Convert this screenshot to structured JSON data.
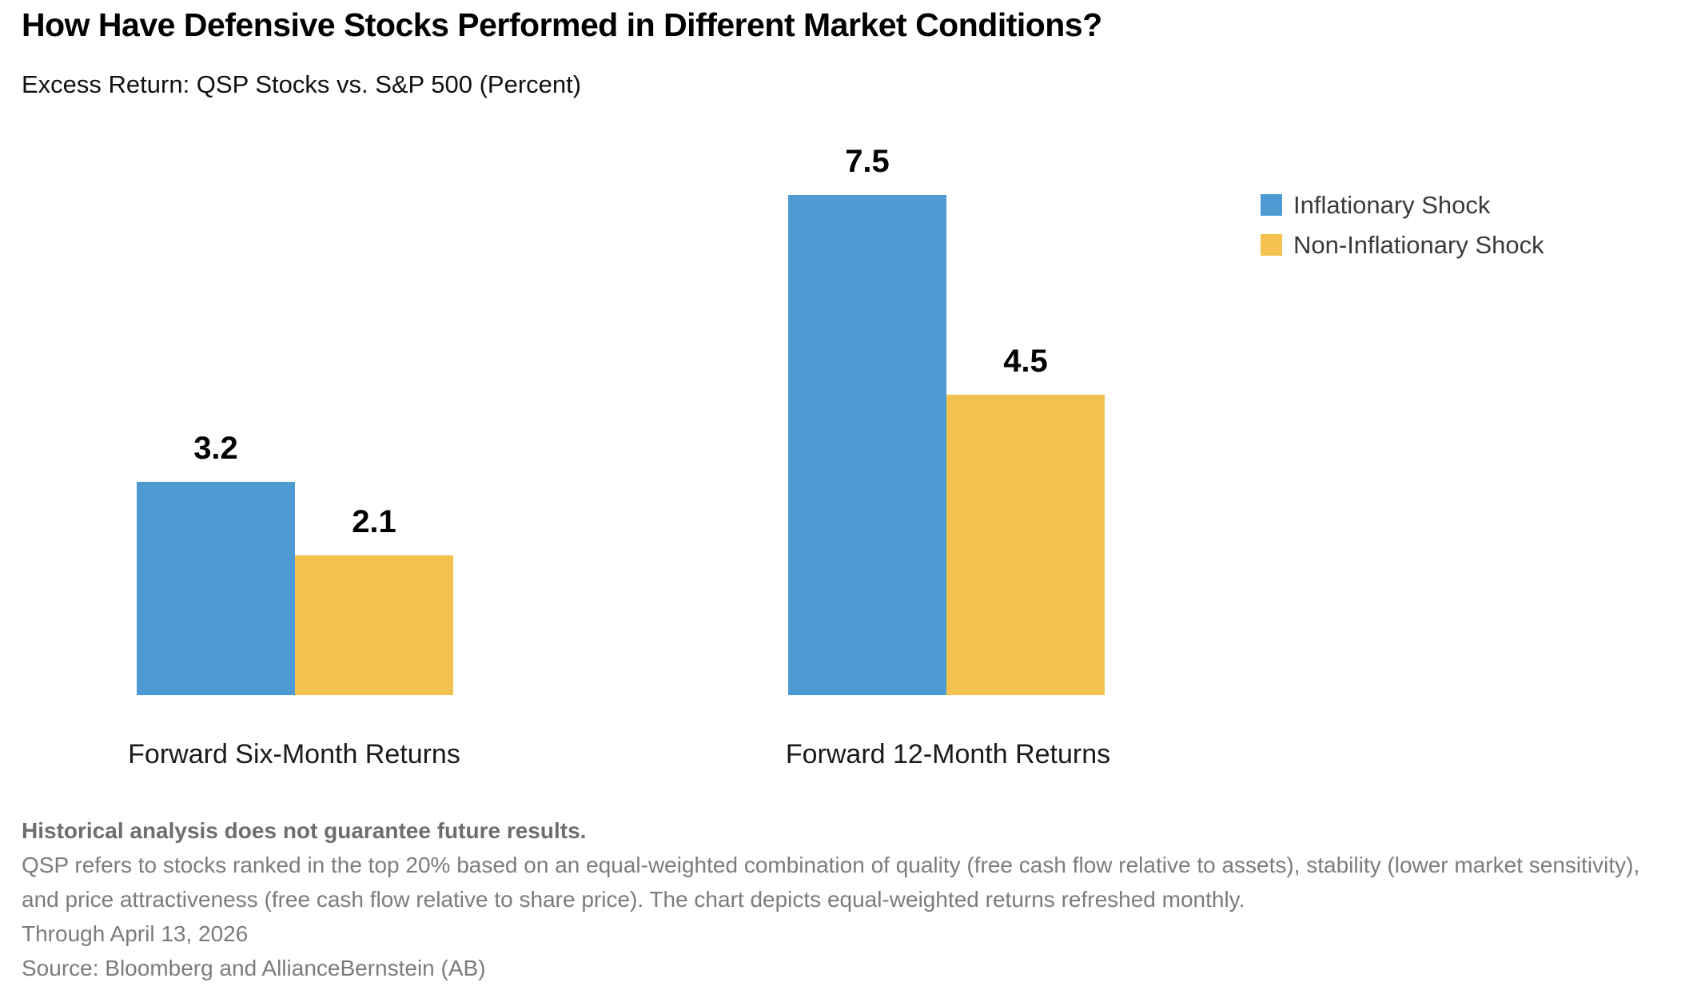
{
  "header": {
    "title": "How Have Defensive Stocks Performed in Different Market Conditions?",
    "subtitle": "Excess Return: QSP Stocks vs. S&P 500 (Percent)"
  },
  "chart_data": {
    "type": "bar",
    "title": "How Have Defensive Stocks Performed in Different Market Conditions?",
    "subtitle": "Excess Return: QSP Stocks vs. S&P 500 (Percent)",
    "categories": [
      "Forward Six-Month Returns",
      "Forward 12-Month Returns"
    ],
    "series": [
      {
        "name": "Inflationary Shock",
        "color": "#4E9BD3",
        "values": [
          3.2,
          7.5
        ]
      },
      {
        "name": "Non-Inflationary Shock",
        "color": "#F2C14E",
        "values": [
          2.1,
          4.5
        ]
      }
    ],
    "value_labels": [
      [
        "3.2",
        "7.5"
      ],
      [
        "2.1",
        "4.5"
      ]
    ],
    "xlabel": "",
    "ylabel": "",
    "ylim": [
      0,
      7.5
    ],
    "grid": false,
    "axis_lines": false,
    "legend_position": "top-right"
  },
  "footer": {
    "disclaimer": "Historical analysis does not guarantee future results.",
    "footnote": "QSP refers to stocks ranked in the top 20% based on an equal-weighted combination of quality (free cash flow relative to assets), stability (lower market sensitivity), and price attractiveness (free cash flow relative to share price). The chart depicts equal-weighted returns refreshed monthly.",
    "through": "Through April 13, 2026",
    "source": "Source: Bloomberg and AllianceBernstein (AB)"
  },
  "colors": {
    "inflationary_blue": "#4E9BD3",
    "non_inflationary_yellow": "#F2C14E",
    "value_label_text": "#000000",
    "legend_text": "#3a3a3a",
    "footer_text": "#7c7c7c"
  }
}
